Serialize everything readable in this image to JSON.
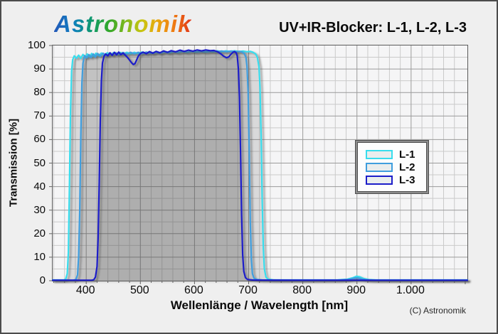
{
  "header": {
    "logo_text": "Astronomik",
    "title": "UV+IR-Blocker: L-1, L-2, L-3"
  },
  "footer": {
    "copyright": "(C) Astronomik"
  },
  "axes": {
    "x_label": "Wellenlänge / Wavelength [nm]",
    "y_label": "Transmission [%]",
    "x_tick_labels": [
      "400",
      "500",
      "600",
      "700",
      "800",
      "900",
      "1.000"
    ],
    "y_tick_labels": [
      "0",
      "10",
      "20",
      "30",
      "40",
      "50",
      "60",
      "70",
      "80",
      "90",
      "100"
    ]
  },
  "legend": {
    "items": [
      {
        "label": "L-1",
        "color": "#38dded"
      },
      {
        "label": "L-2",
        "color": "#3f9ede"
      },
      {
        "label": "L-3",
        "color": "#1c1dc9"
      }
    ]
  },
  "colors": {
    "grid_minor": "#cacaca",
    "grid_major": "#9a9a9a",
    "tick": "#666666",
    "band_fill": "rgba(70,70,70,0.10)"
  },
  "chart_data": {
    "type": "line",
    "title": "UV+IR-Blocker: L-1, L-2, L-3",
    "xlabel": "Wellenlänge / Wavelength [nm]",
    "ylabel": "Transmission [%]",
    "xlim": [
      338,
      1104
    ],
    "ylim": [
      0,
      100
    ],
    "x_major_ticks": [
      400,
      500,
      600,
      700,
      800,
      900,
      1000
    ],
    "x_minor_step": 20,
    "y_major_step": 10,
    "y_minor_step": 5,
    "grid": true,
    "legend_position": "middle-right",
    "series": [
      {
        "name": "L-1",
        "color": "#38dded",
        "points": [
          [
            338,
            0.3
          ],
          [
            358,
            0.3
          ],
          [
            362,
            0.6
          ],
          [
            365,
            3
          ],
          [
            367,
            12
          ],
          [
            369,
            40
          ],
          [
            371,
            72
          ],
          [
            373,
            89
          ],
          [
            375,
            94
          ],
          [
            378,
            95.6
          ],
          [
            382,
            94.6
          ],
          [
            386,
            95.9
          ],
          [
            390,
            94.5
          ],
          [
            394,
            96.2
          ],
          [
            398,
            94.9
          ],
          [
            402,
            96.4
          ],
          [
            406,
            95.1
          ],
          [
            410,
            96.6
          ],
          [
            414,
            95.3
          ],
          [
            418,
            96.7
          ],
          [
            423,
            95.6
          ],
          [
            428,
            96.8
          ],
          [
            433,
            95.8
          ],
          [
            439,
            96.9
          ],
          [
            445,
            96.1
          ],
          [
            451,
            97
          ],
          [
            457,
            96.2
          ],
          [
            463,
            97
          ],
          [
            469,
            96.3
          ],
          [
            475,
            97.1
          ],
          [
            482,
            96.4
          ],
          [
            489,
            97.1
          ],
          [
            496,
            96.5
          ],
          [
            503,
            97.2
          ],
          [
            510,
            96.6
          ],
          [
            517,
            97.2
          ],
          [
            524,
            96.7
          ],
          [
            531,
            97.3
          ],
          [
            538,
            96.8
          ],
          [
            546,
            97.4
          ],
          [
            554,
            96.9
          ],
          [
            562,
            97.4
          ],
          [
            570,
            97
          ],
          [
            578,
            97.5
          ],
          [
            586,
            97.1
          ],
          [
            594,
            97.5
          ],
          [
            602,
            97.2
          ],
          [
            610,
            97.6
          ],
          [
            618,
            97.2
          ],
          [
            626,
            97.6
          ],
          [
            634,
            97.3
          ],
          [
            642,
            97.7
          ],
          [
            650,
            97.3
          ],
          [
            658,
            97.7
          ],
          [
            666,
            97.4
          ],
          [
            674,
            97.7
          ],
          [
            682,
            97.4
          ],
          [
            690,
            97.6
          ],
          [
            697,
            97.3
          ],
          [
            703,
            97.5
          ],
          [
            708,
            97.1
          ],
          [
            713,
            96.4
          ],
          [
            716,
            95
          ],
          [
            719,
            91
          ],
          [
            721,
            82
          ],
          [
            723,
            62
          ],
          [
            725,
            35
          ],
          [
            727,
            14
          ],
          [
            729,
            5
          ],
          [
            732,
            1.5
          ],
          [
            736,
            0.6
          ],
          [
            745,
            0.35
          ],
          [
            800,
            0.3
          ],
          [
            865,
            0.35
          ],
          [
            882,
            0.6
          ],
          [
            892,
            1.2
          ],
          [
            899,
            1.9
          ],
          [
            905,
            1.7
          ],
          [
            912,
            0.9
          ],
          [
            922,
            0.45
          ],
          [
            935,
            0.3
          ],
          [
            1000,
            0.3
          ],
          [
            1104,
            0.3
          ]
        ]
      },
      {
        "name": "L-2",
        "color": "#3f9ede",
        "points": [
          [
            338,
            0.2
          ],
          [
            376,
            0.2
          ],
          [
            381,
            0.5
          ],
          [
            384,
            2.5
          ],
          [
            386,
            10
          ],
          [
            388,
            30
          ],
          [
            390,
            62
          ],
          [
            392,
            84
          ],
          [
            394,
            92.5
          ],
          [
            397,
            95.7
          ],
          [
            401,
            94.7
          ],
          [
            405,
            96.1
          ],
          [
            409,
            94.9
          ],
          [
            413,
            96.4
          ],
          [
            417,
            95.1
          ],
          [
            421,
            96.6
          ],
          [
            426,
            95.4
          ],
          [
            431,
            96.7
          ],
          [
            437,
            95.7
          ],
          [
            443,
            96.8
          ],
          [
            449,
            96
          ],
          [
            455,
            96.9
          ],
          [
            461,
            96.1
          ],
          [
            468,
            97
          ],
          [
            475,
            96.3
          ],
          [
            482,
            97.1
          ],
          [
            489,
            96.4
          ],
          [
            496,
            97.1
          ],
          [
            503,
            96.5
          ],
          [
            511,
            97.2
          ],
          [
            519,
            96.6
          ],
          [
            527,
            97.2
          ],
          [
            535,
            96.8
          ],
          [
            543,
            97.3
          ],
          [
            551,
            96.9
          ],
          [
            560,
            97.4
          ],
          [
            569,
            97
          ],
          [
            578,
            97.4
          ],
          [
            587,
            97.1
          ],
          [
            596,
            97.5
          ],
          [
            605,
            97.2
          ],
          [
            614,
            97.5
          ],
          [
            623,
            97.2
          ],
          [
            632,
            97.6
          ],
          [
            641,
            97.3
          ],
          [
            650,
            97.6
          ],
          [
            659,
            97.3
          ],
          [
            668,
            97.6
          ],
          [
            676,
            97.4
          ],
          [
            683,
            97.5
          ],
          [
            688,
            97.2
          ],
          [
            692,
            96.6
          ],
          [
            695,
            95
          ],
          [
            697,
            91
          ],
          [
            699,
            80
          ],
          [
            701,
            55
          ],
          [
            703,
            25
          ],
          [
            705,
            9
          ],
          [
            707,
            3
          ],
          [
            710,
            1
          ],
          [
            715,
            0.5
          ],
          [
            725,
            0.3
          ],
          [
            800,
            0.25
          ],
          [
            870,
            0.3
          ],
          [
            886,
            0.6
          ],
          [
            895,
            1.1
          ],
          [
            901,
            1.2
          ],
          [
            908,
            0.8
          ],
          [
            917,
            0.4
          ],
          [
            930,
            0.25
          ],
          [
            1000,
            0.2
          ],
          [
            1104,
            0.2
          ]
        ]
      },
      {
        "name": "L-3",
        "color": "#1c1dc9",
        "points": [
          [
            338,
            0.2
          ],
          [
            410,
            0.2
          ],
          [
            414,
            0.4
          ],
          [
            417,
            1.5
          ],
          [
            420,
            6
          ],
          [
            422,
            18
          ],
          [
            424,
            42
          ],
          [
            426,
            68
          ],
          [
            428,
            85
          ],
          [
            430,
            92.5
          ],
          [
            433,
            95.5
          ],
          [
            436,
            96.4
          ],
          [
            440,
            95.6
          ],
          [
            444,
            96.9
          ],
          [
            448,
            95.8
          ],
          [
            452,
            97.1
          ],
          [
            456,
            96
          ],
          [
            460,
            97.2
          ],
          [
            464,
            96.1
          ],
          [
            468,
            96.8
          ],
          [
            472,
            95.9
          ],
          [
            476,
            95
          ],
          [
            480,
            93.8
          ],
          [
            484,
            92.6
          ],
          [
            487,
            91.9
          ],
          [
            490,
            92.3
          ],
          [
            493,
            93.8
          ],
          [
            496,
            95.4
          ],
          [
            500,
            96.6
          ],
          [
            505,
            97.2
          ],
          [
            511,
            96.5
          ],
          [
            517,
            97.4
          ],
          [
            523,
            96.7
          ],
          [
            529,
            97.5
          ],
          [
            536,
            96.9
          ],
          [
            543,
            97.7
          ],
          [
            550,
            97.1
          ],
          [
            557,
            97.8
          ],
          [
            565,
            97.3
          ],
          [
            573,
            98
          ],
          [
            581,
            97.5
          ],
          [
            589,
            98
          ],
          [
            597,
            97.6
          ],
          [
            605,
            98.1
          ],
          [
            613,
            97.7
          ],
          [
            621,
            98.1
          ],
          [
            629,
            97.8
          ],
          [
            636,
            97.9
          ],
          [
            643,
            97.3
          ],
          [
            649,
            96.4
          ],
          [
            654,
            95.4
          ],
          [
            659,
            94.8
          ],
          [
            663,
            95.1
          ],
          [
            667,
            96.2
          ],
          [
            671,
            97.1
          ],
          [
            674,
            97.4
          ],
          [
            677,
            96.9
          ],
          [
            679,
            95.5
          ],
          [
            681,
            90
          ],
          [
            683,
            78
          ],
          [
            685,
            55
          ],
          [
            687,
            28
          ],
          [
            689,
            11
          ],
          [
            691,
            4
          ],
          [
            694,
            1.3
          ],
          [
            698,
            0.5
          ],
          [
            710,
            0.25
          ],
          [
            800,
            0.2
          ],
          [
            900,
            0.2
          ],
          [
            1000,
            0.2
          ],
          [
            1104,
            0.2
          ]
        ]
      }
    ]
  }
}
